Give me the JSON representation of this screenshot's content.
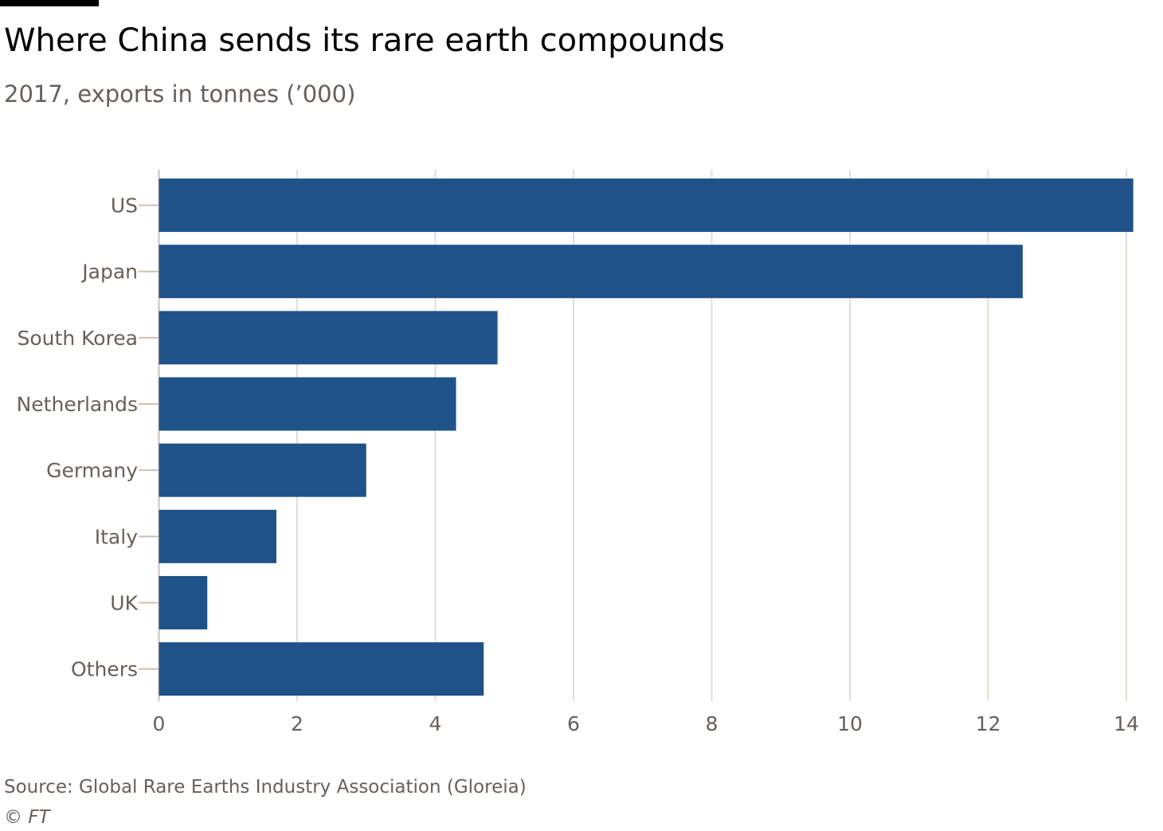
{
  "chart_data": {
    "type": "bar",
    "orientation": "horizontal",
    "title": "Where China sends its rare earth compounds",
    "subtitle": "2017, exports in tonnes (’000)",
    "categories": [
      "US",
      "Japan",
      "South Korea",
      "Netherlands",
      "Germany",
      "Italy",
      "UK",
      "Others"
    ],
    "values": [
      14.1,
      12.5,
      4.9,
      4.3,
      3.0,
      1.7,
      0.7,
      4.7
    ],
    "xlim": [
      0,
      14
    ],
    "xticks": [
      "0",
      "2",
      "4",
      "6",
      "8",
      "10",
      "12",
      "14"
    ],
    "grid": true,
    "bar_color": "#1f5289",
    "grid_color": "#e5ddd5",
    "axis_color": "#ccc1b7",
    "text_color": "#66605c"
  },
  "footer": {
    "source": "Source: Global Rare Earths Industry Association (Gloreia)",
    "credit": "© FT"
  }
}
